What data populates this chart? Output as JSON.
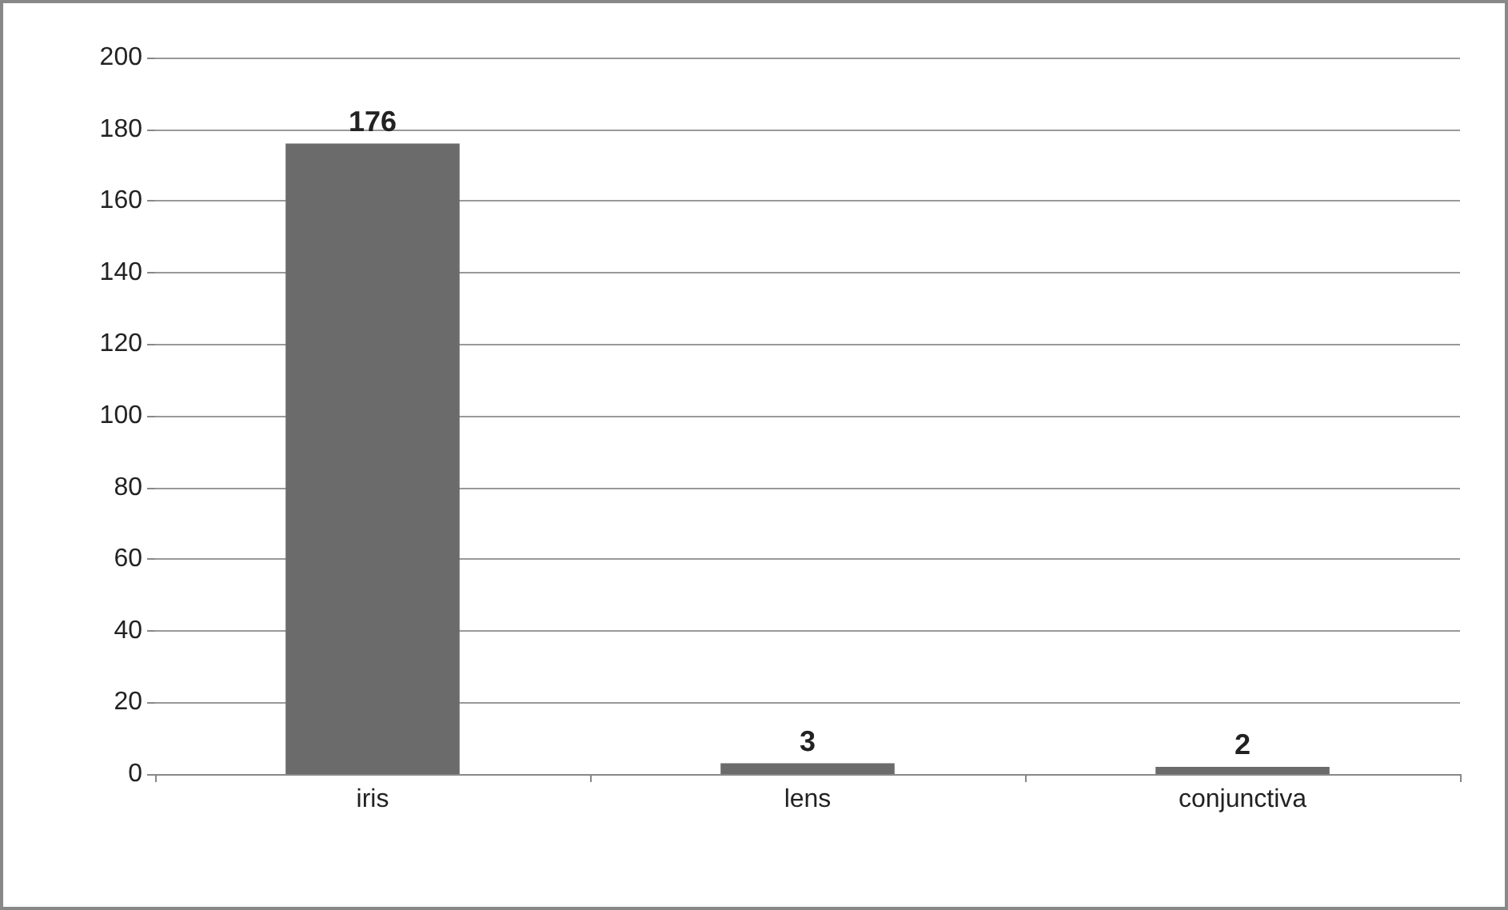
{
  "chart_data": {
    "type": "bar",
    "categories": [
      "iris",
      "lens",
      "conjunctiva"
    ],
    "values": [
      176,
      3,
      2
    ],
    "color": "#6b6b6b",
    "ylim": [
      0,
      200
    ],
    "yticks": [
      0,
      20,
      40,
      60,
      80,
      100,
      120,
      140,
      160,
      180,
      200
    ],
    "grid": "y",
    "data_labels": true
  }
}
